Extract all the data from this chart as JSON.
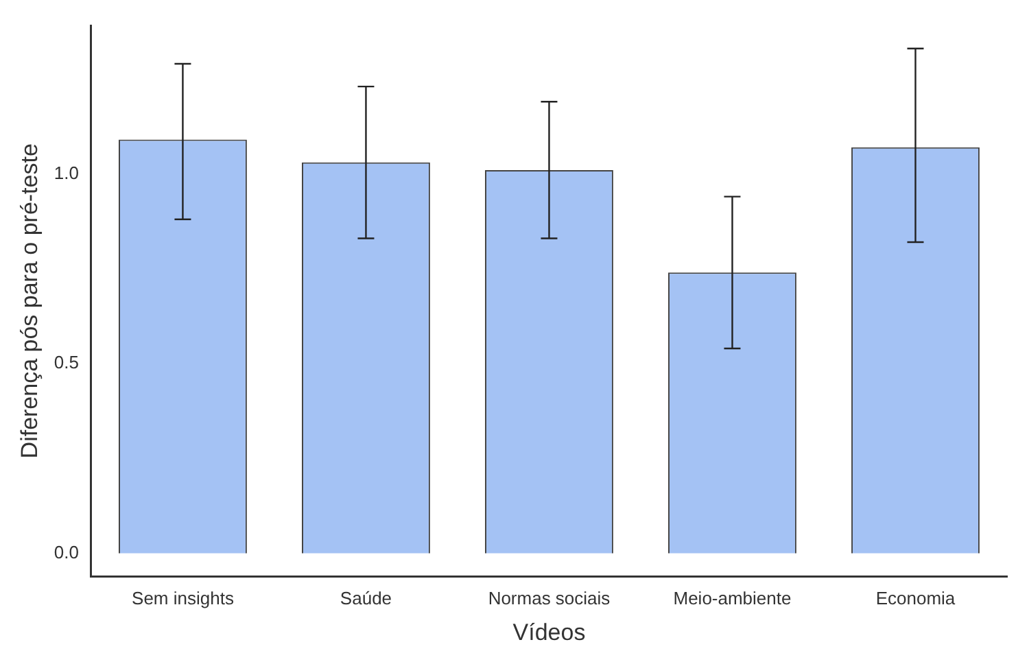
{
  "chart_data": {
    "type": "bar",
    "xlabel": "Vídeos",
    "ylabel": "Diferença pós para o pré-teste",
    "categories": [
      "Sem insights",
      "Saúde",
      "Normas sociais",
      "Meio-ambiente",
      "Economia"
    ],
    "values": [
      1.09,
      1.03,
      1.01,
      0.74,
      1.07
    ],
    "errors": [
      [
        0.88,
        1.29
      ],
      [
        0.83,
        1.23
      ],
      [
        0.83,
        1.19
      ],
      [
        0.54,
        0.94
      ],
      [
        0.82,
        1.33
      ]
    ],
    "color": "#a4c2f4",
    "ylim": [
      -0.06,
      1.39
    ],
    "yticks": [
      {
        "value": 0,
        "label": "0.0"
      },
      {
        "value": 0.5,
        "label": "0.5"
      },
      {
        "value": 1,
        "label": "1.0"
      }
    ],
    "grid": false,
    "legend": false
  }
}
